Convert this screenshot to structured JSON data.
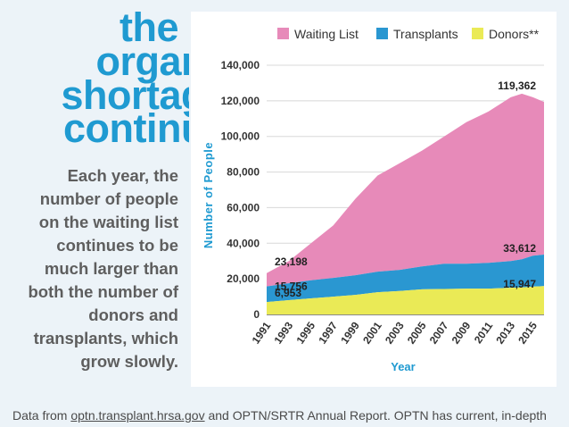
{
  "headline": {
    "lines": [
      "the",
      "organ",
      "shortag",
      "continu"
    ]
  },
  "body_text": "Each year, the number of people on the waiting list continues to be much larger than both the number of donors and transplants, which grow slowly.",
  "footer": {
    "prefix": "Data from ",
    "link_text": "optn.transplant.hrsa.gov",
    "suffix": " and OPTN/SRTR Annual Report. OPTN has current, in-depth"
  },
  "colors": {
    "accent": "#1f9ad1",
    "waiting": "#e78ab9",
    "transplants": "#2a97d1",
    "donors": "#eaea56",
    "body_text": "#5e5e5e"
  },
  "chart_data": {
    "type": "area",
    "xlabel": "Year",
    "ylabel": "Number of People",
    "ylim": [
      0,
      140000
    ],
    "yticks": [
      0,
      20000,
      40000,
      60000,
      80000,
      100000,
      120000,
      140000
    ],
    "ytick_labels": [
      "0",
      "20,000",
      "40,000",
      "60,000",
      "80,000",
      "100,000",
      "120,000",
      "140,000"
    ],
    "xlim": [
      1991,
      2016
    ],
    "xticks": [
      1991,
      1993,
      1995,
      1997,
      1999,
      2001,
      2003,
      2005,
      2007,
      2009,
      2011,
      2013,
      2015
    ],
    "xtick_labels": [
      "1991",
      "1993",
      "1995",
      "1997",
      "1999",
      "2001",
      "2003",
      "2005",
      "2007",
      "2009",
      "2011",
      "2013",
      "2015"
    ],
    "grid": true,
    "legend_position": "top",
    "x": [
      1991,
      1993,
      1995,
      1997,
      1999,
      2001,
      2003,
      2005,
      2007,
      2009,
      2011,
      2013,
      2014,
      2015,
      2016
    ],
    "series": [
      {
        "name": "Waiting List",
        "color": "#e78ab9",
        "values": [
          23198,
          30000,
          40000,
          50000,
          65000,
          78000,
          85000,
          92000,
          100000,
          108000,
          114000,
          122000,
          124000,
          122000,
          119362
        ]
      },
      {
        "name": "Transplants",
        "color": "#2a97d1",
        "values": [
          15756,
          17500,
          19200,
          20500,
          22000,
          24000,
          25000,
          27000,
          28500,
          28500,
          29000,
          30000,
          31000,
          33000,
          33612
        ]
      },
      {
        "name": "Donors**",
        "color": "#eaea56",
        "values": [
          6953,
          8000,
          9000,
          10000,
          11000,
          12500,
          13200,
          14100,
          14300,
          14500,
          14500,
          15000,
          15200,
          15600,
          15947
        ]
      }
    ],
    "annotations": [
      {
        "text": "23,198",
        "x": 1991,
        "y": 23198
      },
      {
        "text": "15,756",
        "x": 1991,
        "y": 15756
      },
      {
        "text": "6,953",
        "x": 1991,
        "y": 6953
      },
      {
        "text": "119,362",
        "x": 2016,
        "y": 119362
      },
      {
        "text": "33,612",
        "x": 2016,
        "y": 33612
      },
      {
        "text": "15,947",
        "x": 2016,
        "y": 15947
      }
    ]
  }
}
